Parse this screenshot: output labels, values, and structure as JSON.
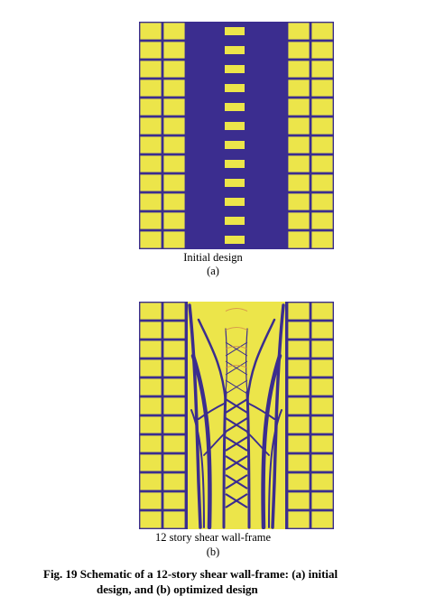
{
  "figure": {
    "panel_a": {
      "title": "Initial design",
      "label": "(a)"
    },
    "panel_b": {
      "title": "12 story shear wall-frame",
      "label": "(b)"
    },
    "caption_line1": "Fig. 19  Schematic of a 12-story shear wall-frame: (a) initial",
    "caption_line2": "design, and (b) optimized design",
    "stories": 12,
    "colors": {
      "wall": "#3b2d8f",
      "cell": "#ece54a",
      "frame": "#3b2d8f"
    }
  }
}
